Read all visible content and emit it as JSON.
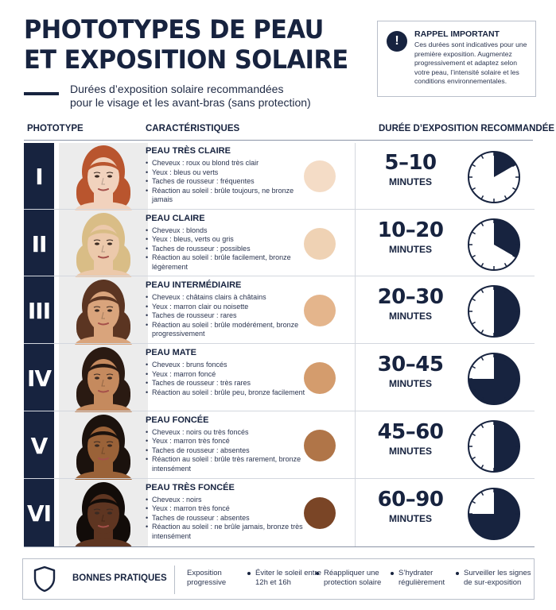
{
  "title": {
    "line1": "PHOTOTYPES DE PEAU",
    "line2": "ET EXPOSITION SOLAIRE"
  },
  "subtitle": {
    "line1": "Durées d’exposition solaire recommandées",
    "line2": "pour le visage et les avant-bras (sans protection)"
  },
  "reminder": {
    "icon": "exclamation-icon",
    "icon_glyph": "!",
    "title": "RAPPEL IMPORTANT",
    "text": "Ces durées sont indicatives pour une première exposition. Augmentez progressivement et adaptez selon votre peau, l’intensité solaire et les conditions environnementales."
  },
  "columns": {
    "phototype": "PHOTOTYPE",
    "characteristics": "CARACTÉRISTIQUES",
    "duration": "DURÉE D’EXPOSITION RECOMMANDÉE"
  },
  "minutes_label": "MINUTES",
  "types": [
    {
      "roman": "I",
      "name": "PEAU TRÈS CLAIRE",
      "traits": [
        "Cheveux : roux ou blond très clair",
        "Yeux : bleus ou verts",
        "Taches de rousseur : fréquentes",
        "Réaction au soleil : brûle toujours, ne bronze jamais"
      ],
      "duration": "5–10",
      "swatch_color": "#f4dcc6",
      "skin_color": "#f1d2bd",
      "hair_color": "#b9552e",
      "clock_fraction": 0.1667
    },
    {
      "roman": "II",
      "name": "PEAU CLAIRE",
      "traits": [
        "Cheveux : blonds",
        "Yeux : bleus, verts ou gris",
        "Taches de rousseur : possibles",
        "Réaction au soleil : brûle facilement, bronze légèrement"
      ],
      "duration": "10–20",
      "swatch_color": "#efd2b4",
      "skin_color": "#ecc9ab",
      "hair_color": "#d9bd86",
      "clock_fraction": 0.3333
    },
    {
      "roman": "III",
      "name": "PEAU INTERMÉDIAIRE",
      "traits": [
        "Cheveux : châtains clairs à châtains",
        "Yeux : marron clair ou noisette",
        "Taches de rousseur : rares",
        "Réaction au soleil : brûle modérément, bronze progressivement"
      ],
      "duration": "20–30",
      "swatch_color": "#e4b58c",
      "skin_color": "#d9a47c",
      "hair_color": "#5b3522",
      "clock_fraction": 0.5
    },
    {
      "roman": "IV",
      "name": "PEAU MATE",
      "traits": [
        "Cheveux : bruns foncés",
        "Yeux : marron foncé",
        "Taches de rousseur : très rares",
        "Réaction au soleil : brûle peu, bronze facilement"
      ],
      "duration": "30–45",
      "swatch_color": "#d49c6d",
      "skin_color": "#c58a5e",
      "hair_color": "#2a1a12",
      "clock_fraction": 0.75
    },
    {
      "roman": "V",
      "name": "PEAU FONCÉE",
      "traits": [
        "Cheveux : noirs ou très foncés",
        "Yeux : marron très foncé",
        "Taches de rousseur : absentes",
        "Réaction au soleil : brûle très rarement, bronze intensément"
      ],
      "duration": "45–60",
      "swatch_color": "#b07548",
      "skin_color": "#9a6238",
      "hair_color": "#1b120d",
      "clock_fraction": 1.0
    },
    {
      "roman": "VI",
      "name": "PEAU TRÈS FONCÉE",
      "traits": [
        "Cheveux : noirs",
        "Yeux : marron très foncé",
        "Taches de rousseur : absentes",
        "Réaction au soleil : ne brûle jamais, bronze très intensément"
      ],
      "duration": "60–90",
      "swatch_color": "#7a4526",
      "skin_color": "#5e3521",
      "hair_color": "#120c09",
      "clock_fraction": 1.5
    }
  ],
  "practices": {
    "icon": "shield-icon",
    "title": "BONNES PRATIQUES",
    "tips": [
      {
        "line1": "Exposition",
        "line2": "progressive"
      },
      {
        "line1": "Éviter le soleil entre",
        "line2": "12h et 16h"
      },
      {
        "line1": "Réappliquer une",
        "line2": "protection solaire"
      },
      {
        "line1": "S’hydrater",
        "line2": "régulièrement"
      },
      {
        "line1": "Surveiller les signes",
        "line2": "de sur-exposition"
      }
    ]
  },
  "colors": {
    "navy": "#17233f",
    "rule": "#d3d7de"
  }
}
